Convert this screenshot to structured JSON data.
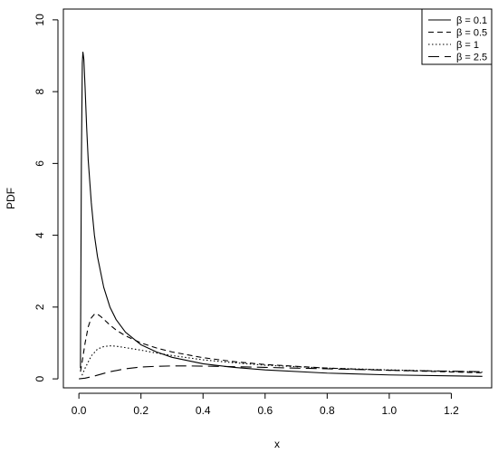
{
  "chart_data": {
    "type": "line",
    "xlabel": "x",
    "ylabel": "PDF",
    "xlim": [
      -0.05,
      1.33
    ],
    "ylim": [
      -0.25,
      10.3
    ],
    "xticks": [
      0.0,
      0.2,
      0.4,
      0.6,
      0.8,
      1.0,
      1.2
    ],
    "xtick_labels": [
      "0.0",
      "0.2",
      "0.4",
      "0.6",
      "0.8",
      "1.0",
      "1.2"
    ],
    "yticks": [
      0,
      2,
      4,
      6,
      8,
      10
    ],
    "ytick_labels": [
      "0",
      "2",
      "4",
      "6",
      "8",
      "10"
    ],
    "grid": false,
    "legend_position": "top-right",
    "series": [
      {
        "name": "β = 0.1",
        "dash": "solid",
        "x": [
          0.005,
          0.008,
          0.011,
          0.013,
          0.016,
          0.02,
          0.025,
          0.03,
          0.04,
          0.05,
          0.06,
          0.08,
          0.1,
          0.12,
          0.15,
          0.2,
          0.25,
          0.3,
          0.4,
          0.5,
          0.6,
          0.8,
          1.0,
          1.3
        ],
        "y": [
          0.3,
          6.0,
          8.8,
          9.1,
          8.9,
          8.1,
          7.0,
          6.1,
          4.9,
          4.0,
          3.4,
          2.55,
          2.0,
          1.65,
          1.3,
          0.95,
          0.75,
          0.6,
          0.42,
          0.32,
          0.25,
          0.16,
          0.11,
          0.07
        ]
      },
      {
        "name": "β = 0.5",
        "dash": "6,4",
        "x": [
          0.005,
          0.01,
          0.02,
          0.03,
          0.04,
          0.05,
          0.06,
          0.07,
          0.08,
          0.1,
          0.12,
          0.15,
          0.2,
          0.25,
          0.3,
          0.4,
          0.5,
          0.6,
          0.8,
          1.0,
          1.3
        ],
        "y": [
          0.2,
          0.45,
          1.0,
          1.45,
          1.7,
          1.8,
          1.8,
          1.74,
          1.66,
          1.5,
          1.36,
          1.2,
          1.0,
          0.86,
          0.75,
          0.59,
          0.48,
          0.4,
          0.3,
          0.24,
          0.17
        ]
      },
      {
        "name": "β = 1",
        "dash": "1.5,2.5",
        "x": [
          0.01,
          0.02,
          0.04,
          0.06,
          0.08,
          0.1,
          0.12,
          0.15,
          0.2,
          0.25,
          0.3,
          0.4,
          0.5,
          0.6,
          0.8,
          1.0,
          1.3
        ],
        "y": [
          0.1,
          0.3,
          0.64,
          0.83,
          0.9,
          0.92,
          0.91,
          0.87,
          0.8,
          0.72,
          0.65,
          0.53,
          0.45,
          0.38,
          0.3,
          0.25,
          0.19
        ]
      },
      {
        "name": "β = 2.5",
        "dash": "12,6",
        "x": [
          0.0,
          0.02,
          0.05,
          0.1,
          0.15,
          0.2,
          0.25,
          0.3,
          0.35,
          0.4,
          0.5,
          0.6,
          0.8,
          1.0,
          1.3
        ],
        "y": [
          0.0,
          0.02,
          0.08,
          0.2,
          0.28,
          0.33,
          0.35,
          0.36,
          0.36,
          0.355,
          0.34,
          0.32,
          0.28,
          0.24,
          0.2
        ]
      }
    ]
  }
}
